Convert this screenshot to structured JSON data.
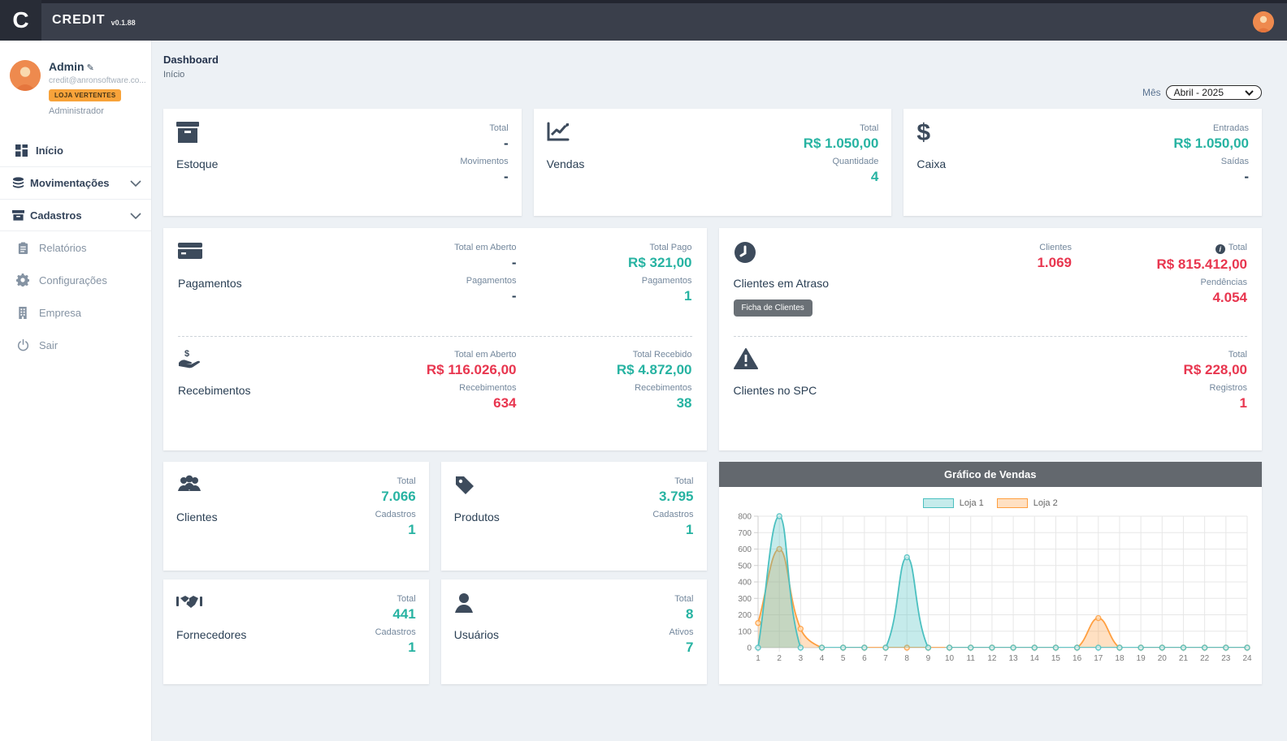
{
  "topbar": {
    "logo_letter": "C",
    "app_name": "CREDIT",
    "version": "v0.1.88"
  },
  "sidebar": {
    "user": {
      "name": "Admin",
      "email": "credit@anronsoftware.co...",
      "badge": "LOJA VERTENTES",
      "role": "Administrador"
    },
    "menu": {
      "inicio": "Início",
      "movimentacoes": "Movimentações",
      "cadastros": "Cadastros",
      "relatorios": "Relatórios",
      "configuracoes": "Configurações",
      "empresa": "Empresa",
      "sair": "Sair"
    }
  },
  "header": {
    "title": "Dashboard",
    "breadcrumb": "Início",
    "month_label": "Mês",
    "month_value": "Abril - 2025"
  },
  "colors": {
    "teal": "#27b3a2",
    "red": "#e8364f",
    "dark": "#2a3f54",
    "badge_orange": "#f8a33a"
  },
  "cards": {
    "estoque": {
      "title": "Estoque",
      "stats": [
        {
          "label": "Total",
          "value": "-",
          "tone": "dark"
        },
        {
          "label": "Movimentos",
          "value": "-",
          "tone": "dark"
        }
      ]
    },
    "vendas": {
      "title": "Vendas",
      "stats": [
        {
          "label": "Total",
          "value": "R$ 1.050,00",
          "tone": "teal"
        },
        {
          "label": "Quantidade",
          "value": "4",
          "tone": "teal"
        }
      ]
    },
    "caixa": {
      "title": "Caixa",
      "stats": [
        {
          "label": "Entradas",
          "value": "R$ 1.050,00",
          "tone": "teal"
        },
        {
          "label": "Saídas",
          "value": "-",
          "tone": "dark"
        }
      ]
    },
    "pagamentos": {
      "title": "Pagamentos",
      "col1": [
        {
          "label": "Total em Aberto",
          "value": "-",
          "tone": "dark"
        },
        {
          "label": "Pagamentos",
          "value": "-",
          "tone": "dark"
        }
      ],
      "col2": [
        {
          "label": "Total Pago",
          "value": "R$ 321,00",
          "tone": "teal"
        },
        {
          "label": "Pagamentos",
          "value": "1",
          "tone": "teal"
        }
      ]
    },
    "recebimentos": {
      "title": "Recebimentos",
      "col1": [
        {
          "label": "Total em Aberto",
          "value": "R$ 116.026,00",
          "tone": "red"
        },
        {
          "label": "Recebimentos",
          "value": "634",
          "tone": "red"
        }
      ],
      "col2": [
        {
          "label": "Total Recebido",
          "value": "R$ 4.872,00",
          "tone": "teal"
        },
        {
          "label": "Recebimentos",
          "value": "38",
          "tone": "teal"
        }
      ]
    },
    "atraso": {
      "title": "Clientes em Atraso",
      "button": "Ficha de Clientes",
      "col1": [
        {
          "label": "Clientes",
          "value": "1.069",
          "tone": "red"
        }
      ],
      "col2": [
        {
          "label": "Total",
          "value": "R$ 815.412,00",
          "tone": "red"
        },
        {
          "label": "Pendências",
          "value": "4.054",
          "tone": "red"
        }
      ]
    },
    "spc": {
      "title": "Clientes no SPC",
      "col": [
        {
          "label": "Total",
          "value": "R$ 228,00",
          "tone": "red"
        },
        {
          "label": "Registros",
          "value": "1",
          "tone": "red"
        }
      ]
    },
    "clientes": {
      "title": "Clientes",
      "stats": [
        {
          "label": "Total",
          "value": "7.066",
          "tone": "teal"
        },
        {
          "label": "Cadastros",
          "value": "1",
          "tone": "teal"
        }
      ]
    },
    "produtos": {
      "title": "Produtos",
      "stats": [
        {
          "label": "Total",
          "value": "3.795",
          "tone": "teal"
        },
        {
          "label": "Cadastros",
          "value": "1",
          "tone": "teal"
        }
      ]
    },
    "fornecedores": {
      "title": "Fornecedores",
      "stats": [
        {
          "label": "Total",
          "value": "441",
          "tone": "teal"
        },
        {
          "label": "Cadastros",
          "value": "1",
          "tone": "teal"
        }
      ]
    },
    "usuarios": {
      "title": "Usuários",
      "stats": [
        {
          "label": "Total",
          "value": "8",
          "tone": "teal"
        },
        {
          "label": "Ativos",
          "value": "7",
          "tone": "teal"
        }
      ]
    }
  },
  "chart_data": {
    "type": "line",
    "title": "Gráfico de Vendas",
    "x": [
      1,
      2,
      3,
      4,
      5,
      6,
      7,
      8,
      9,
      10,
      11,
      12,
      13,
      14,
      15,
      16,
      17,
      18,
      19,
      20,
      21,
      22,
      23,
      24
    ],
    "series": [
      {
        "name": "Loja 1",
        "color": "#4bc0c0",
        "fill": "rgba(75,192,192,0.32)",
        "point_fill": "#d8efef",
        "values": [
          0,
          800,
          0,
          0,
          0,
          0,
          0,
          550,
          0,
          0,
          0,
          0,
          0,
          0,
          0,
          0,
          0,
          0,
          0,
          0,
          0,
          0,
          0,
          0
        ]
      },
      {
        "name": "Loja 2",
        "color": "#ff9f40",
        "fill": "rgba(255,159,64,0.32)",
        "point_fill": "#ffe2c2",
        "values": [
          150,
          600,
          115,
          0,
          0,
          0,
          0,
          0,
          0,
          0,
          0,
          0,
          0,
          0,
          0,
          0,
          180,
          0,
          0,
          0,
          0,
          0,
          0,
          0
        ]
      }
    ],
    "ylim": [
      0,
      800
    ],
    "ytick_step": 100,
    "grid": true,
    "legend_position": "top",
    "tension": 0.4
  }
}
